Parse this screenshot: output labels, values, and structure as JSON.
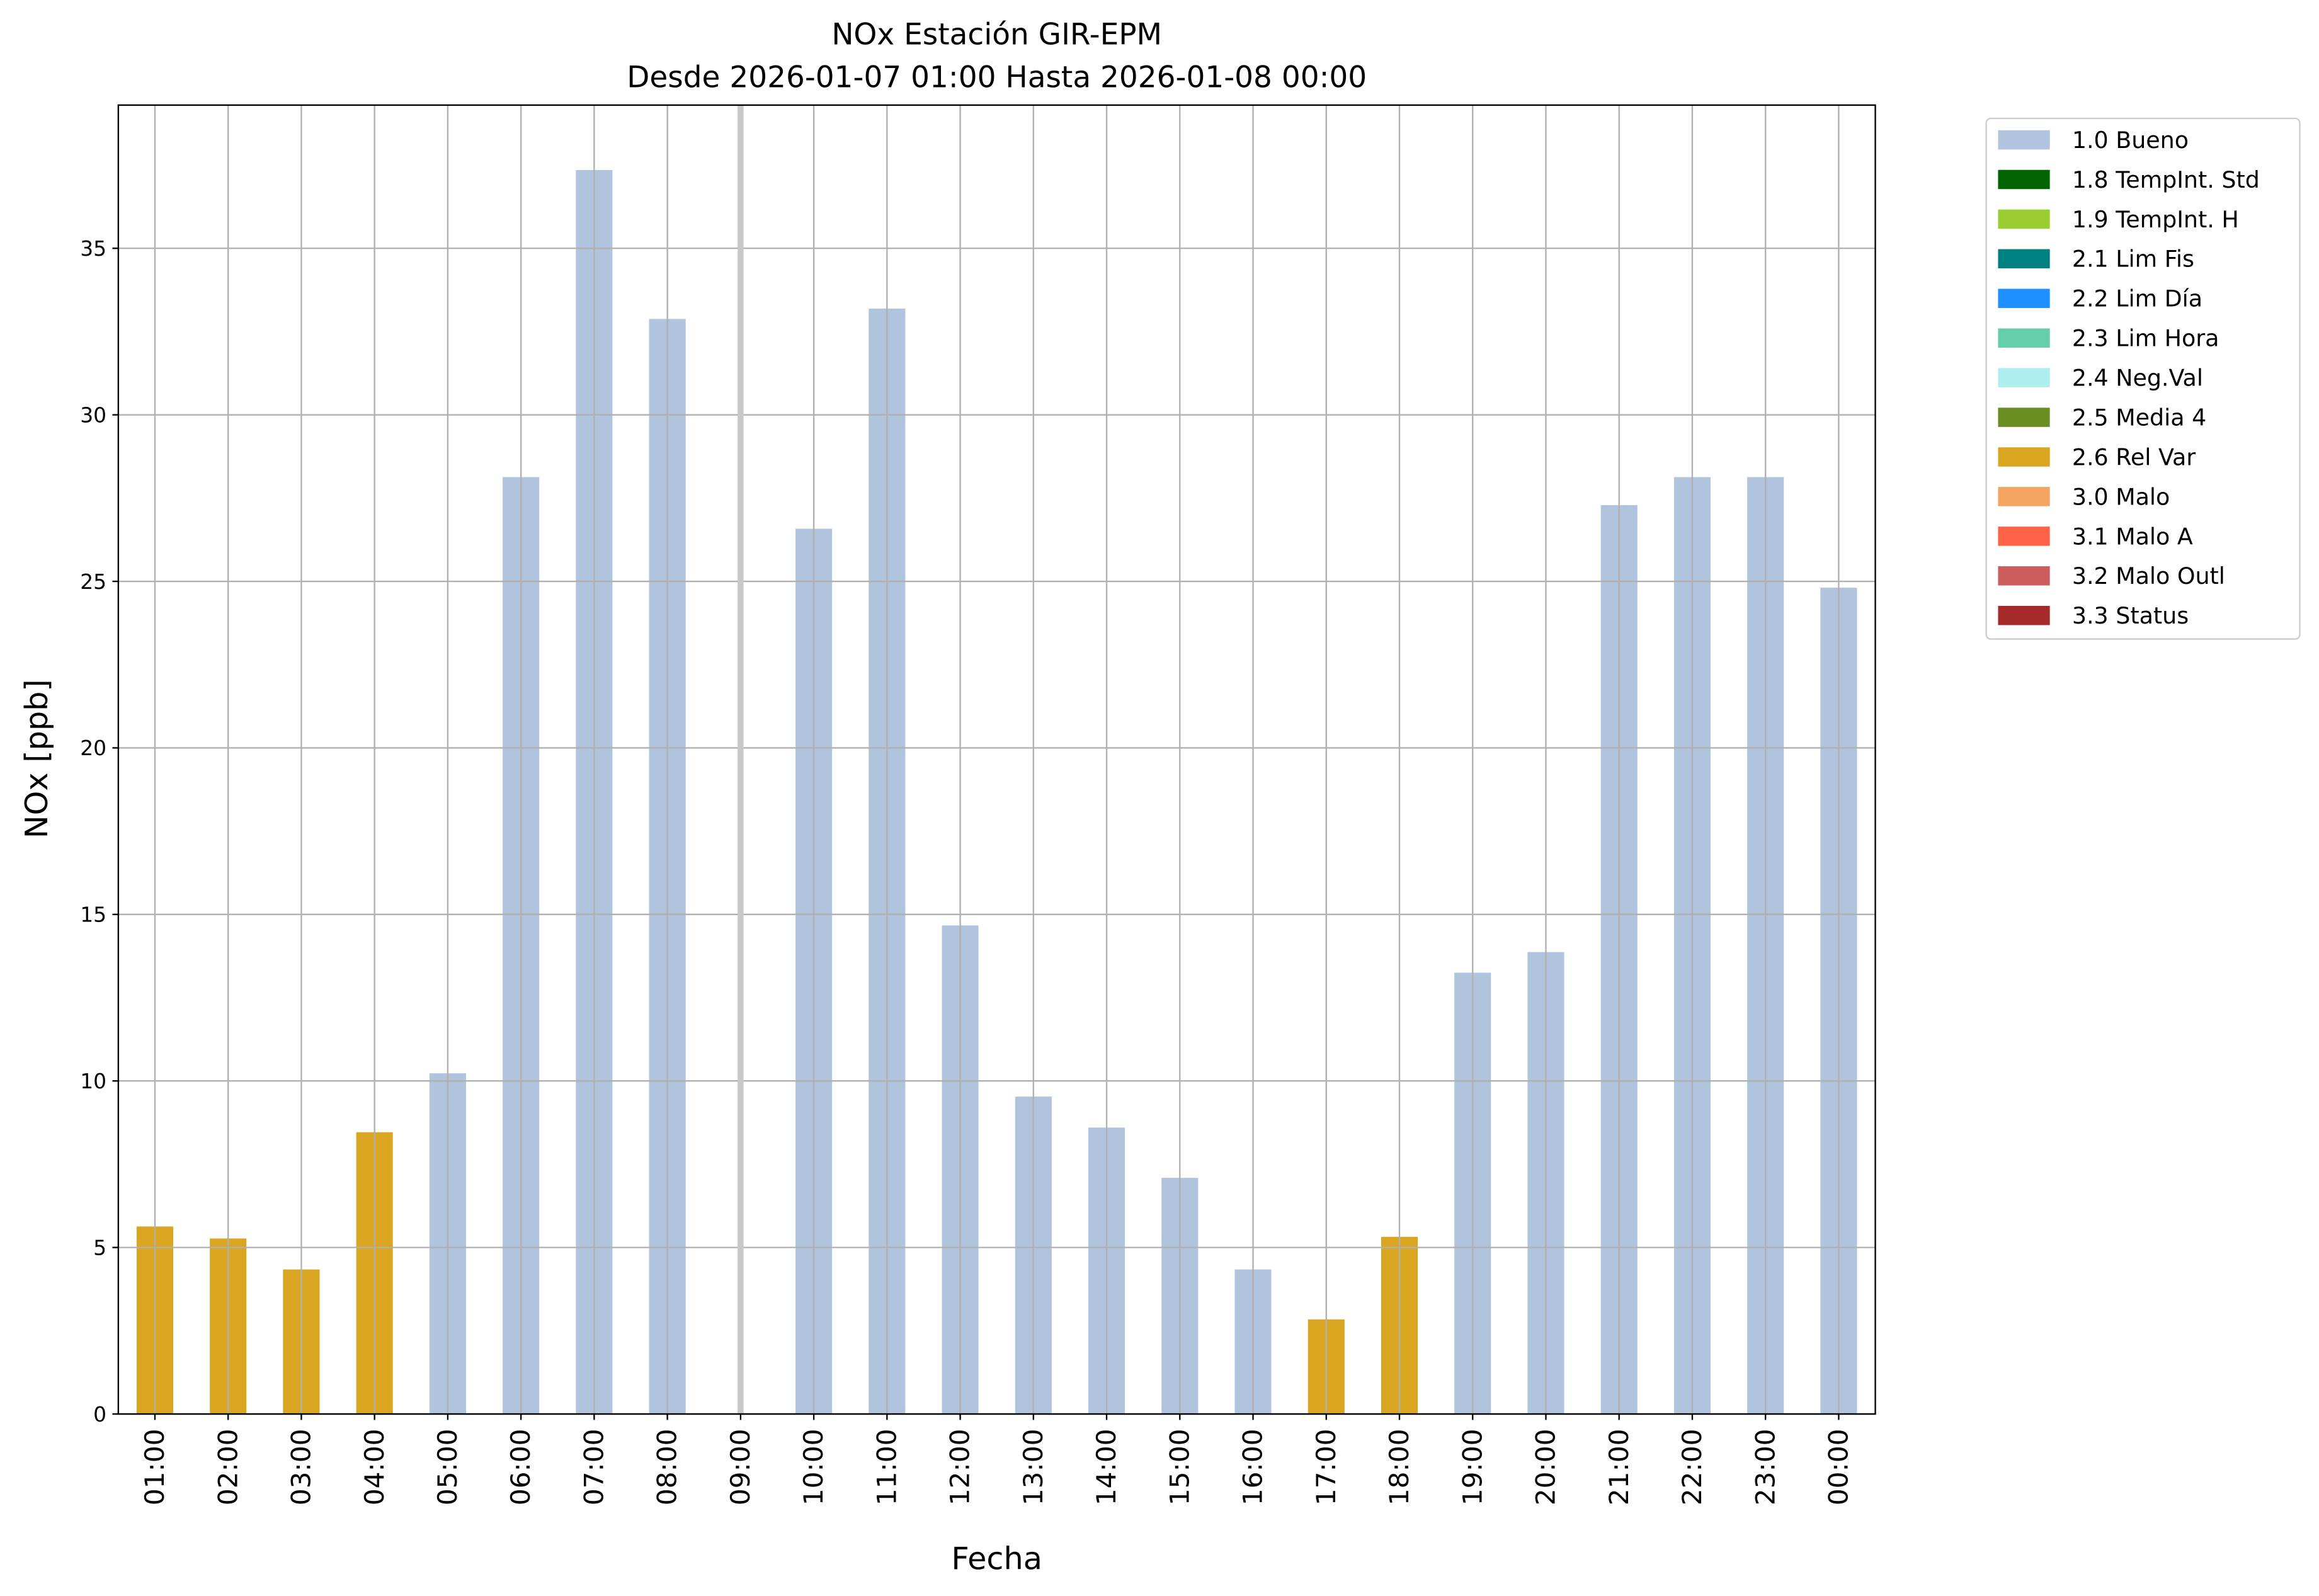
{
  "chart_data": {
    "type": "bar",
    "title": "NOx Estación GIR-EPM",
    "subtitle": "Desde 2026-01-07 01:00 Hasta 2026-01-08 00:00",
    "xlabel": "Fecha",
    "ylabel": "NOx [ppb]",
    "ylim": [
      0,
      39.3
    ],
    "yticks": [
      0,
      5,
      10,
      15,
      20,
      25,
      30,
      35
    ],
    "grid": true,
    "legend_position": "outside-top-right",
    "categories": [
      "01:00",
      "02:00",
      "03:00",
      "04:00",
      "05:00",
      "06:00",
      "07:00",
      "08:00",
      "09:00",
      "10:00",
      "11:00",
      "12:00",
      "13:00",
      "14:00",
      "15:00",
      "16:00",
      "17:00",
      "18:00",
      "19:00",
      "20:00",
      "21:00",
      "22:00",
      "23:00",
      "00:00"
    ],
    "values": [
      5.63,
      5.27,
      4.34,
      8.46,
      10.23,
      28.13,
      37.35,
      32.88,
      null,
      26.58,
      33.19,
      14.67,
      9.53,
      8.6,
      7.09,
      4.34,
      2.84,
      5.32,
      13.25,
      13.87,
      27.29,
      28.13,
      28.13,
      24.81
    ],
    "flags": [
      "2.6 Rel Var",
      "2.6 Rel Var",
      "2.6 Rel Var",
      "2.6 Rel Var",
      "1.0 Bueno",
      "1.0 Bueno",
      "1.0 Bueno",
      "1.0 Bueno",
      null,
      "1.0 Bueno",
      "1.0 Bueno",
      "1.0 Bueno",
      "1.0 Bueno",
      "1.0 Bueno",
      "1.0 Bueno",
      "1.0 Bueno",
      "2.6 Rel Var",
      "2.6 Rel Var",
      "1.0 Bueno",
      "1.0 Bueno",
      "1.0 Bueno",
      "1.0 Bueno",
      "1.0 Bueno",
      "1.0 Bueno"
    ],
    "missing_marker_index": 8,
    "legend": [
      {
        "label": "1.0 Bueno",
        "color": "#b0c4de"
      },
      {
        "label": "1.8 TempInt. Std",
        "color": "#006400"
      },
      {
        "label": "1.9 TempInt. H",
        "color": "#9acd32"
      },
      {
        "label": "2.1 Lim Fis",
        "color": "#008080"
      },
      {
        "label": "2.2 Lim Día",
        "color": "#1e90ff"
      },
      {
        "label": "2.3 Lim Hora",
        "color": "#66cdaa"
      },
      {
        "label": "2.4 Neg.Val",
        "color": "#afeeee"
      },
      {
        "label": "2.5 Media 4",
        "color": "#6b8e23"
      },
      {
        "label": "2.6 Rel Var",
        "color": "#daa520"
      },
      {
        "label": "3.0 Malo",
        "color": "#f4a460"
      },
      {
        "label": "3.1 Malo A",
        "color": "#ff6347"
      },
      {
        "label": "3.2 Malo Outl",
        "color": "#cd5c5c"
      },
      {
        "label": "3.3 Status",
        "color": "#a52a2a"
      }
    ]
  }
}
